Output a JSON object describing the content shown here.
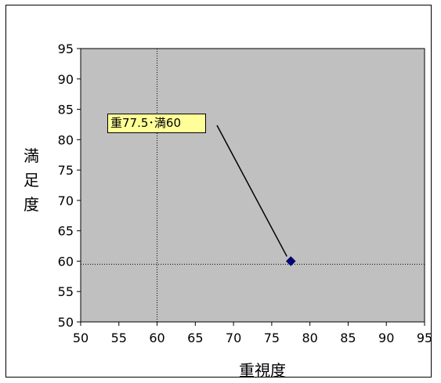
{
  "page": {
    "caption": ""
  },
  "chart_data": {
    "type": "scatter",
    "title": "",
    "xlabel": "重視度",
    "ylabel": "満足度",
    "xlim": [
      50,
      95
    ],
    "ylim": [
      50,
      95
    ],
    "xticks": [
      50,
      55,
      60,
      65,
      70,
      75,
      80,
      85,
      90,
      95
    ],
    "yticks": [
      50,
      55,
      60,
      65,
      70,
      75,
      80,
      85,
      90,
      95
    ],
    "grid": false,
    "plot_background": "#c0c0c0",
    "marker_color": "#000080",
    "reference_lines": {
      "x": 60,
      "y": 59.5
    },
    "series": [
      {
        "values": [
          {
            "x": 77.5,
            "y": 60
          }
        ]
      }
    ],
    "annotations": [
      {
        "text": "重77.5･満60",
        "x": 77.5,
        "y": 60,
        "box_color": "#ffff99"
      }
    ]
  }
}
